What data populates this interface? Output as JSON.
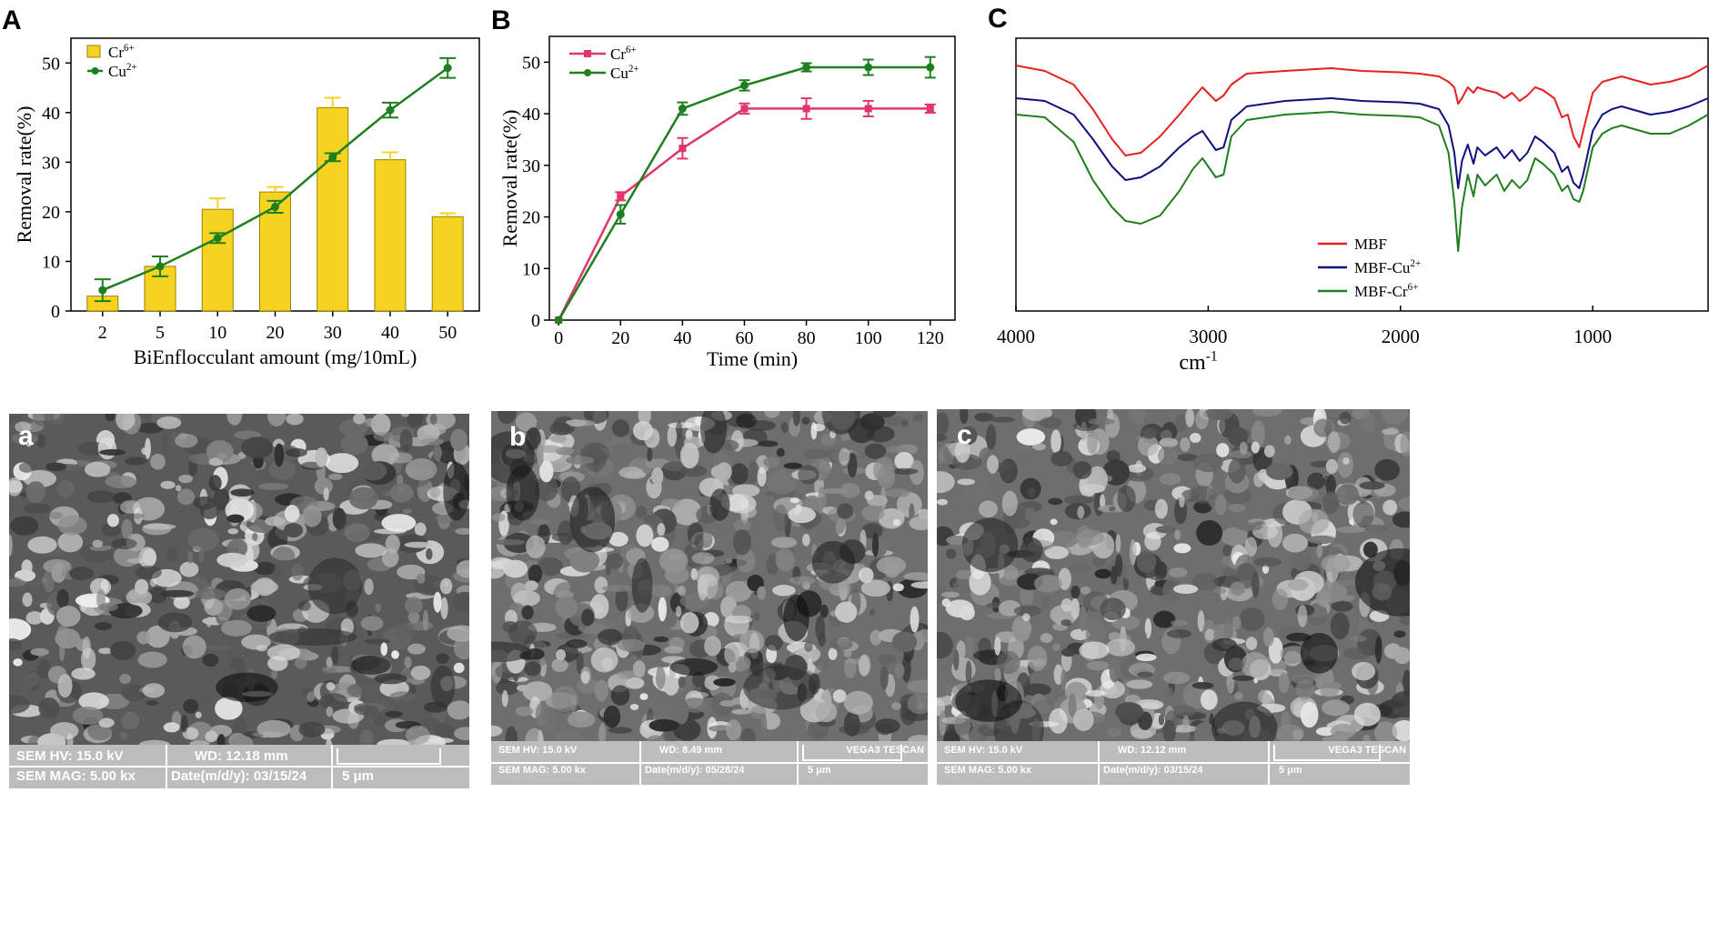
{
  "panels": {
    "A": "A",
    "B": "B",
    "C": "C",
    "sem_a": "a",
    "sem_b": "b",
    "sem_c": "c"
  },
  "colors": {
    "bar_yellow": "#f5d320",
    "green": "#1e7f1e",
    "pink": "#e0366a",
    "red": "#e62020",
    "navy": "#10107e"
  },
  "chart_data": [
    {
      "type": "bar",
      "categories": [
        "2",
        "5",
        "10",
        "20",
        "30",
        "40",
        "50"
      ],
      "series": [
        {
          "name": "Cr⁶⁺",
          "type": "bar",
          "values": [
            3,
            9,
            20.5,
            24,
            41,
            30.5,
            19
          ],
          "errors": [
            0,
            0,
            2.2,
            1,
            2,
            1.5,
            0.7
          ]
        },
        {
          "name": "Cu²⁺",
          "type": "line",
          "values": [
            4.2,
            9,
            14.7,
            21,
            31,
            40.5,
            49
          ],
          "errors": [
            2.2,
            2,
            1,
            1.2,
            0.8,
            1.5,
            2
          ]
        }
      ],
      "xlabel": "BiEnflocculant amount (mg/10mL)",
      "ylabel": "Removal rate(%)",
      "ylim": [
        0,
        55
      ],
      "yticks": [
        "0",
        "10",
        "20",
        "30",
        "40",
        "50"
      ],
      "legend": "top-left"
    },
    {
      "type": "line",
      "x": [
        0,
        20,
        40,
        60,
        80,
        100,
        120
      ],
      "series": [
        {
          "name": "Cr⁶⁺",
          "values": [
            0,
            24,
            33.3,
            41,
            41,
            41,
            41
          ],
          "errors": [
            0,
            0.8,
            2,
            1,
            2,
            1.5,
            0.8
          ]
        },
        {
          "name": "Cu²⁺",
          "values": [
            0,
            20.5,
            41,
            45.5,
            49,
            49,
            49
          ],
          "errors": [
            0,
            1.8,
            1.2,
            1,
            0.8,
            1.5,
            2
          ]
        }
      ],
      "xlabel": "Time (min)",
      "ylabel": "Removal rate(%)",
      "xlim": [
        -3,
        128
      ],
      "ylim": [
        0,
        55
      ],
      "xticks": [
        "0",
        "20",
        "40",
        "60",
        "80",
        "100",
        "120"
      ],
      "yticks": [
        "0",
        "10",
        "20",
        "30",
        "40",
        "50"
      ],
      "legend": "top-left"
    },
    {
      "type": "line",
      "xlabel": "cm⁻¹",
      "xlim": [
        4000,
        400
      ],
      "xticks": [
        "4000",
        "3000",
        "2000",
        "1000"
      ],
      "series": [
        {
          "name": "MBF",
          "x": [
            4000,
            3850,
            3700,
            3600,
            3500,
            3430,
            3350,
            3250,
            3150,
            3080,
            3030,
            2960,
            2920,
            2880,
            2800,
            2600,
            2360,
            2200,
            2000,
            1900,
            1800,
            1750,
            1720,
            1700,
            1680,
            1650,
            1620,
            1600,
            1560,
            1500,
            1460,
            1420,
            1380,
            1340,
            1300,
            1260,
            1200,
            1160,
            1130,
            1100,
            1070,
            1050,
            1000,
            950,
            900,
            850,
            800,
            700,
            600,
            500,
            400
          ],
          "values": [
            90,
            88,
            83,
            74,
            63,
            57,
            58,
            64,
            72,
            78,
            82,
            77,
            79,
            83,
            87,
            88,
            89,
            88,
            87.5,
            87,
            86,
            84,
            82,
            76,
            78,
            82,
            80,
            82,
            81,
            80,
            78,
            80,
            77,
            79,
            82,
            81,
            78,
            71,
            72,
            64,
            60,
            66,
            80,
            84,
            85,
            86,
            85,
            83,
            84,
            86,
            90
          ]
        },
        {
          "name": "MBF-Cu²⁺",
          "x": [
            4000,
            3850,
            3700,
            3600,
            3500,
            3430,
            3350,
            3250,
            3150,
            3080,
            3030,
            2960,
            2920,
            2880,
            2800,
            2600,
            2360,
            2200,
            2000,
            1900,
            1800,
            1750,
            1720,
            1700,
            1680,
            1650,
            1620,
            1600,
            1560,
            1500,
            1460,
            1420,
            1380,
            1340,
            1300,
            1260,
            1200,
            1160,
            1130,
            1100,
            1070,
            1050,
            1000,
            950,
            900,
            850,
            800,
            700,
            600,
            500,
            400
          ],
          "values": [
            78,
            77,
            72,
            63,
            53,
            48,
            49,
            53,
            60,
            64,
            66,
            59,
            60,
            70,
            75,
            77,
            78,
            77,
            76.5,
            76,
            74,
            68,
            58,
            45,
            55,
            61,
            54,
            60,
            57,
            60,
            56,
            59,
            55,
            58,
            64,
            62,
            58,
            51,
            53,
            47,
            45,
            50,
            66,
            72,
            74,
            75,
            74,
            72,
            73,
            75,
            78
          ]
        },
        {
          "name": "MBF-Cr⁶⁺",
          "x": [
            4000,
            3850,
            3700,
            3600,
            3500,
            3430,
            3350,
            3250,
            3150,
            3080,
            3030,
            2960,
            2920,
            2880,
            2800,
            2600,
            2360,
            2200,
            2000,
            1900,
            1800,
            1750,
            1720,
            1700,
            1680,
            1650,
            1620,
            1600,
            1560,
            1500,
            1460,
            1420,
            1380,
            1340,
            1300,
            1260,
            1200,
            1160,
            1130,
            1100,
            1070,
            1050,
            1000,
            950,
            900,
            850,
            800,
            700,
            600,
            500,
            400
          ],
          "values": [
            72,
            71,
            62,
            48,
            38,
            33,
            32,
            35,
            44,
            52,
            56,
            49,
            50,
            64,
            70,
            72,
            73,
            72,
            71.5,
            71,
            68,
            58,
            40,
            22,
            38,
            50,
            42,
            50,
            46,
            50,
            44,
            48,
            45,
            48,
            56,
            54,
            50,
            44,
            46,
            41,
            40,
            44,
            60,
            65,
            67,
            68,
            67,
            65,
            65,
            68,
            72
          ]
        }
      ],
      "ylim": [
        0,
        100
      ],
      "legend": "bottom-right"
    }
  ],
  "sem": [
    {
      "hv": "SEM HV: 15.0 kV",
      "wd": "WD: 12.18 mm",
      "mag": "SEM MAG: 5.00 kx",
      "date": "Date(m/d/y): 03/15/24",
      "scale": "5 μm",
      "brand": ""
    },
    {
      "hv": "SEM HV: 15.0 kV",
      "wd": "WD: 8.49 mm",
      "mag": "SEM MAG: 5.00 kx",
      "date": "Date(m/d/y): 05/28/24",
      "scale": "5 μm",
      "brand": "VEGA3 TESCAN"
    },
    {
      "hv": "SEM HV: 15.0 kV",
      "wd": "WD: 12.12 mm",
      "mag": "SEM MAG: 5.00 kx",
      "date": "Date(m/d/y): 03/15/24",
      "scale": "5 μm",
      "brand": "VEGA3 TESCAN"
    }
  ]
}
